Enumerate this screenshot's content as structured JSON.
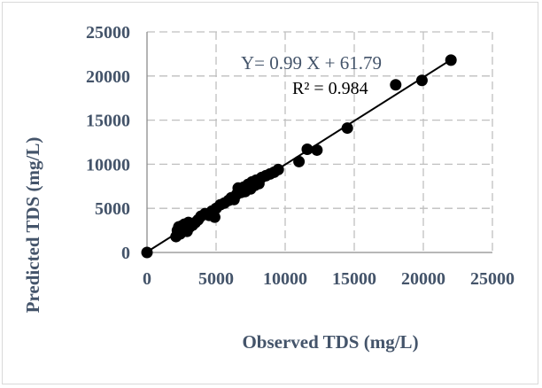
{
  "chart_data": {
    "type": "scatter",
    "xlabel": "Observed TDS (mg/L)",
    "ylabel": "Predicted  TDS (mg/L)",
    "xlim": [
      0,
      25000
    ],
    "ylim": [
      0,
      25000
    ],
    "x_ticks": [
      "0",
      "5000",
      "10000",
      "15000",
      "20000",
      "25000"
    ],
    "y_ticks": [
      "0",
      "5000",
      "10000",
      "15000",
      "20000",
      "25000"
    ],
    "grid": true,
    "grid_style": "dashed",
    "equation": "Y= 0.99 X + 61.79",
    "r_squared": "R² = 0.984",
    "trendline": {
      "slope": 0.99,
      "intercept": 61.79,
      "x_range": [
        0,
        22000
      ]
    },
    "colors": {
      "points": "#000000",
      "axis_text": "#44546a",
      "equation": "#44546a",
      "grid": "#bfbfbf"
    },
    "points": [
      [
        0,
        0
      ],
      [
        2100,
        1800
      ],
      [
        2200,
        2500
      ],
      [
        2300,
        2900
      ],
      [
        2400,
        2100
      ],
      [
        2500,
        3000
      ],
      [
        2600,
        2600
      ],
      [
        2700,
        3200
      ],
      [
        2800,
        2800
      ],
      [
        2900,
        2400
      ],
      [
        3000,
        3400
      ],
      [
        3100,
        2900
      ],
      [
        3300,
        3100
      ],
      [
        3500,
        3400
      ],
      [
        3700,
        3700
      ],
      [
        3900,
        4100
      ],
      [
        4200,
        4400
      ],
      [
        4500,
        4200
      ],
      [
        4700,
        4700
      ],
      [
        4900,
        4000
      ],
      [
        5000,
        5000
      ],
      [
        5300,
        5400
      ],
      [
        5600,
        5600
      ],
      [
        5900,
        5900
      ],
      [
        6100,
        6200
      ],
      [
        6300,
        6000
      ],
      [
        6500,
        6600
      ],
      [
        6600,
        7300
      ],
      [
        6800,
        6800
      ],
      [
        7000,
        7400
      ],
      [
        7100,
        6900
      ],
      [
        7300,
        7700
      ],
      [
        7500,
        7200
      ],
      [
        7600,
        8000
      ],
      [
        7800,
        7600
      ],
      [
        7900,
        8200
      ],
      [
        8100,
        7800
      ],
      [
        8300,
        8500
      ],
      [
        8600,
        8700
      ],
      [
        8900,
        8900
      ],
      [
        9200,
        9100
      ],
      [
        9500,
        9400
      ],
      [
        11000,
        10300
      ],
      [
        11600,
        11700
      ],
      [
        12300,
        11600
      ],
      [
        14500,
        14100
      ],
      [
        18000,
        19000
      ],
      [
        19900,
        19500
      ],
      [
        22000,
        21800
      ]
    ]
  }
}
